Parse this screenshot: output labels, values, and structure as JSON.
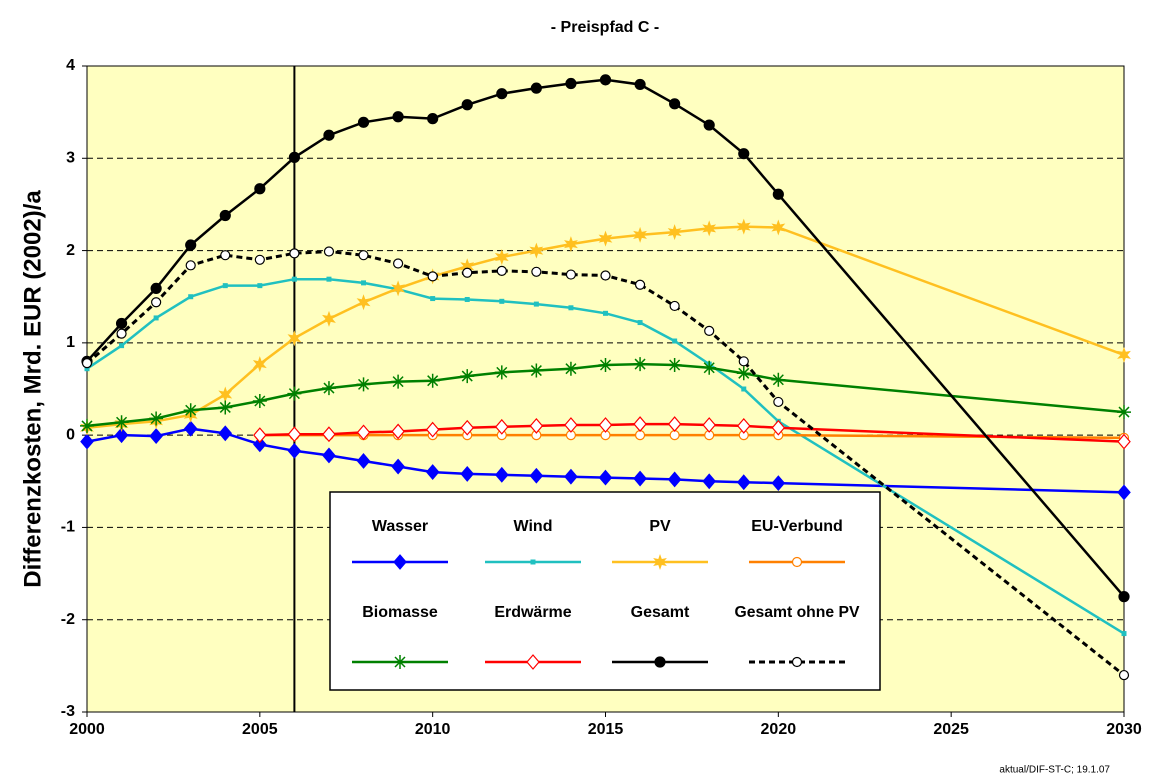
{
  "chart_data": {
    "type": "line",
    "title": "- Preispfad C -",
    "ylabel": "Differenzkosten, Mrd. EUR (2002)/a",
    "footnote": "aktual/DIF-ST-C; 19.1.07",
    "x": [
      2000,
      2001,
      2002,
      2003,
      2004,
      2005,
      2006,
      2007,
      2008,
      2009,
      2010,
      2011,
      2012,
      2013,
      2014,
      2015,
      2016,
      2017,
      2018,
      2019,
      2020,
      2030
    ],
    "xlim": [
      2000,
      2030
    ],
    "xticks": [
      2000,
      2005,
      2010,
      2015,
      2020,
      2025,
      2030
    ],
    "ylim": [
      -3,
      4
    ],
    "yticks": [
      -3,
      -2,
      -1,
      0,
      1,
      2,
      3,
      4
    ],
    "grid": true,
    "vlines": [
      2006
    ],
    "series": [
      {
        "name": "Wasser",
        "color": "#0000ff",
        "marker": "diamond",
        "values": [
          -0.07,
          0.0,
          -0.01,
          0.07,
          0.02,
          -0.1,
          -0.17,
          -0.22,
          -0.28,
          -0.34,
          -0.4,
          -0.42,
          -0.43,
          -0.44,
          -0.45,
          -0.46,
          -0.47,
          -0.48,
          -0.5,
          -0.51,
          -0.52,
          -0.62
        ]
      },
      {
        "name": "Wind",
        "color": "#20c0c0",
        "marker": "square",
        "values": [
          0.72,
          0.97,
          1.27,
          1.5,
          1.62,
          1.62,
          1.69,
          1.69,
          1.65,
          1.58,
          1.48,
          1.47,
          1.45,
          1.42,
          1.38,
          1.32,
          1.22,
          1.02,
          0.77,
          0.5,
          0.15,
          -2.15
        ]
      },
      {
        "name": "PV",
        "color": "#ffc020",
        "marker": "star",
        "values": [
          0.08,
          0.12,
          0.15,
          0.22,
          0.44,
          0.77,
          1.05,
          1.26,
          1.44,
          1.59,
          1.72,
          1.83,
          1.93,
          2.0,
          2.07,
          2.13,
          2.17,
          2.2,
          2.24,
          2.26,
          2.25,
          0.87
        ]
      },
      {
        "name": "EU-Verbund",
        "color": "#ff8000",
        "marker": "open-circle",
        "values": [
          null,
          null,
          null,
          null,
          null,
          0.0,
          0.0,
          0.0,
          0.0,
          0.0,
          0.0,
          0.0,
          0.0,
          0.0,
          0.0,
          0.0,
          0.0,
          0.0,
          0.0,
          0.0,
          0.0,
          -0.03
        ]
      },
      {
        "name": "Biomasse",
        "color": "#008000",
        "marker": "asterisk",
        "values": [
          0.1,
          0.14,
          0.18,
          0.27,
          0.3,
          0.37,
          0.45,
          0.51,
          0.55,
          0.58,
          0.59,
          0.64,
          0.68,
          0.7,
          0.72,
          0.76,
          0.77,
          0.76,
          0.73,
          0.67,
          0.6,
          0.25
        ]
      },
      {
        "name": "Erdwärme",
        "color": "#ff0000",
        "marker": "open-diamond",
        "values": [
          null,
          null,
          null,
          null,
          null,
          0.0,
          0.01,
          0.01,
          0.03,
          0.04,
          0.06,
          0.08,
          0.09,
          0.1,
          0.11,
          0.11,
          0.12,
          0.12,
          0.11,
          0.1,
          0.08,
          -0.07
        ]
      },
      {
        "name": "Gesamt",
        "color": "#000000",
        "marker": "circle",
        "values": [
          0.8,
          1.21,
          1.59,
          2.06,
          2.38,
          2.67,
          3.01,
          3.25,
          3.39,
          3.45,
          3.43,
          3.58,
          3.7,
          3.76,
          3.81,
          3.85,
          3.8,
          3.59,
          3.36,
          3.05,
          2.61,
          -1.75
        ]
      },
      {
        "name": "Gesamt ohne PV",
        "color": "#000000",
        "marker": "open-circle",
        "dash": true,
        "values": [
          0.78,
          1.1,
          1.44,
          1.84,
          1.95,
          1.9,
          1.97,
          1.99,
          1.95,
          1.86,
          1.72,
          1.76,
          1.78,
          1.77,
          1.74,
          1.73,
          1.63,
          1.4,
          1.13,
          0.8,
          0.36,
          -2.6
        ]
      }
    ]
  }
}
